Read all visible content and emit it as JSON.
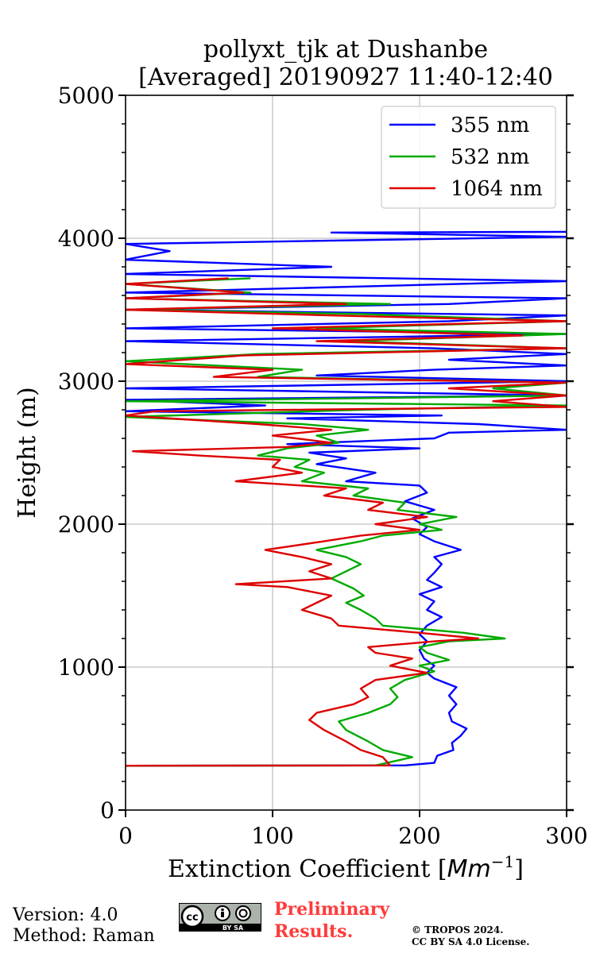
{
  "chart_data": {
    "type": "line",
    "title_line1": "pollyxt_tjk at Dushanbe",
    "title_line2": "[Averaged] 20190927 11:40-12:40",
    "xlabel_text": "Extinction Coefficient [",
    "xlabel_unit": "Mm",
    "xlabel_exp": "−1",
    "xlabel_close": "]",
    "ylabel": "Height (m)",
    "xlim": [
      0,
      300
    ],
    "ylim": [
      0,
      5000
    ],
    "x_ticks": [
      "0",
      "100",
      "200",
      "300"
    ],
    "y_ticks": [
      "0",
      "1000",
      "2000",
      "3000",
      "4000",
      "5000"
    ],
    "grid": true,
    "legend_position": "top-right",
    "series": [
      {
        "name": "355 nm",
        "color": "#0000ff",
        "points": [
          [
            0,
            310
          ],
          [
            190,
            312
          ],
          [
            210,
            330
          ],
          [
            212,
            380
          ],
          [
            223,
            420
          ],
          [
            222,
            470
          ],
          [
            228,
            520
          ],
          [
            232,
            570
          ],
          [
            222,
            620
          ],
          [
            220,
            680
          ],
          [
            225,
            740
          ],
          [
            220,
            800
          ],
          [
            225,
            860
          ],
          [
            210,
            920
          ],
          [
            205,
            960
          ],
          [
            210,
            1010
          ],
          [
            203,
            1060
          ],
          [
            200,
            1120
          ],
          [
            205,
            1180
          ],
          [
            200,
            1230
          ],
          [
            205,
            1290
          ],
          [
            215,
            1350
          ],
          [
            205,
            1400
          ],
          [
            210,
            1460
          ],
          [
            200,
            1510
          ],
          [
            215,
            1560
          ],
          [
            205,
            1610
          ],
          [
            210,
            1660
          ],
          [
            215,
            1720
          ],
          [
            210,
            1770
          ],
          [
            228,
            1820
          ],
          [
            210,
            1880
          ],
          [
            200,
            1930
          ],
          [
            205,
            1980
          ],
          [
            195,
            2040
          ],
          [
            210,
            2100
          ],
          [
            190,
            2160
          ],
          [
            205,
            2220
          ],
          [
            200,
            2270
          ],
          [
            150,
            2300
          ],
          [
            170,
            2360
          ],
          [
            130,
            2420
          ],
          [
            150,
            2460
          ],
          [
            125,
            2500
          ],
          [
            200,
            2530
          ],
          [
            110,
            2560
          ],
          [
            210,
            2600
          ],
          [
            220,
            2640
          ],
          [
            300,
            2660
          ],
          [
            240,
            2700
          ],
          [
            110,
            2740
          ],
          [
            215,
            2760
          ],
          [
            0,
            2790
          ],
          [
            95,
            2830
          ],
          [
            0,
            2870
          ],
          [
            300,
            2900
          ],
          [
            0,
            2950
          ],
          [
            300,
            3000
          ],
          [
            130,
            3040
          ],
          [
            210,
            3080
          ],
          [
            300,
            3110
          ],
          [
            220,
            3150
          ],
          [
            300,
            3190
          ],
          [
            210,
            3230
          ],
          [
            0,
            3280
          ],
          [
            300,
            3330
          ],
          [
            0,
            3370
          ],
          [
            220,
            3420
          ],
          [
            300,
            3460
          ],
          [
            0,
            3500
          ],
          [
            220,
            3540
          ],
          [
            300,
            3580
          ],
          [
            0,
            3620
          ],
          [
            300,
            3700
          ],
          [
            0,
            3750
          ],
          [
            140,
            3800
          ],
          [
            0,
            3850
          ],
          [
            30,
            3910
          ],
          [
            0,
            3960
          ],
          [
            300,
            4010
          ],
          [
            140,
            4040
          ],
          [
            300,
            4045
          ]
        ]
      },
      {
        "name": "532 nm",
        "color": "#00aa00",
        "points": [
          [
            0,
            310
          ],
          [
            170,
            312
          ],
          [
            195,
            370
          ],
          [
            175,
            420
          ],
          [
            165,
            480
          ],
          [
            150,
            560
          ],
          [
            145,
            620
          ],
          [
            165,
            680
          ],
          [
            180,
            740
          ],
          [
            185,
            790
          ],
          [
            180,
            850
          ],
          [
            190,
            910
          ],
          [
            210,
            970
          ],
          [
            200,
            1010
          ],
          [
            220,
            1050
          ],
          [
            205,
            1100
          ],
          [
            200,
            1140
          ],
          [
            220,
            1180
          ],
          [
            258,
            1200
          ],
          [
            230,
            1240
          ],
          [
            175,
            1290
          ],
          [
            170,
            1340
          ],
          [
            160,
            1400
          ],
          [
            150,
            1450
          ],
          [
            162,
            1500
          ],
          [
            155,
            1550
          ],
          [
            140,
            1620
          ],
          [
            150,
            1670
          ],
          [
            160,
            1720
          ],
          [
            150,
            1770
          ],
          [
            130,
            1820
          ],
          [
            160,
            1880
          ],
          [
            175,
            1920
          ],
          [
            215,
            1960
          ],
          [
            200,
            2000
          ],
          [
            225,
            2050
          ],
          [
            185,
            2100
          ],
          [
            190,
            2150
          ],
          [
            155,
            2200
          ],
          [
            165,
            2250
          ],
          [
            120,
            2300
          ],
          [
            135,
            2360
          ],
          [
            115,
            2400
          ],
          [
            125,
            2450
          ],
          [
            90,
            2480
          ],
          [
            110,
            2530
          ],
          [
            145,
            2570
          ],
          [
            130,
            2620
          ],
          [
            165,
            2660
          ],
          [
            120,
            2700
          ],
          [
            0,
            2750
          ],
          [
            160,
            2800
          ],
          [
            300,
            2830
          ],
          [
            0,
            2860
          ],
          [
            300,
            2900
          ],
          [
            250,
            2950
          ],
          [
            300,
            2990
          ],
          [
            90,
            3030
          ],
          [
            120,
            3080
          ],
          [
            0,
            3140
          ],
          [
            90,
            3190
          ],
          [
            300,
            3230
          ],
          [
            150,
            3280
          ],
          [
            300,
            3330
          ],
          [
            130,
            3370
          ],
          [
            300,
            3420
          ],
          [
            160,
            3470
          ],
          [
            0,
            3500
          ],
          [
            180,
            3540
          ],
          [
            0,
            3580
          ],
          [
            85,
            3620
          ],
          [
            0,
            3680
          ],
          [
            85,
            3720
          ]
        ]
      },
      {
        "name": "1064 nm",
        "color": "#dd0000",
        "points": [
          [
            0,
            310
          ],
          [
            180,
            312
          ],
          [
            175,
            370
          ],
          [
            160,
            420
          ],
          [
            150,
            480
          ],
          [
            135,
            560
          ],
          [
            125,
            630
          ],
          [
            130,
            680
          ],
          [
            155,
            740
          ],
          [
            165,
            790
          ],
          [
            160,
            850
          ],
          [
            170,
            910
          ],
          [
            205,
            960
          ],
          [
            180,
            1010
          ],
          [
            195,
            1060
          ],
          [
            170,
            1100
          ],
          [
            165,
            1140
          ],
          [
            210,
            1180
          ],
          [
            240,
            1200
          ],
          [
            200,
            1240
          ],
          [
            145,
            1290
          ],
          [
            140,
            1340
          ],
          [
            120,
            1400
          ],
          [
            130,
            1450
          ],
          [
            140,
            1500
          ],
          [
            110,
            1560
          ],
          [
            75,
            1580
          ],
          [
            140,
            1620
          ],
          [
            125,
            1670
          ],
          [
            140,
            1720
          ],
          [
            120,
            1770
          ],
          [
            95,
            1820
          ],
          [
            135,
            1880
          ],
          [
            160,
            1920
          ],
          [
            200,
            1960
          ],
          [
            170,
            2000
          ],
          [
            205,
            2050
          ],
          [
            165,
            2100
          ],
          [
            175,
            2150
          ],
          [
            135,
            2200
          ],
          [
            150,
            2250
          ],
          [
            75,
            2300
          ],
          [
            120,
            2360
          ],
          [
            100,
            2400
          ],
          [
            105,
            2450
          ],
          [
            50,
            2480
          ],
          [
            5,
            2510
          ],
          [
            110,
            2540
          ],
          [
            140,
            2570
          ],
          [
            100,
            2620
          ],
          [
            140,
            2660
          ],
          [
            90,
            2700
          ],
          [
            0,
            2760
          ],
          [
            20,
            2790
          ],
          [
            300,
            2820
          ],
          [
            250,
            2860
          ],
          [
            300,
            2900
          ],
          [
            220,
            2950
          ],
          [
            300,
            2990
          ],
          [
            60,
            3030
          ],
          [
            100,
            3080
          ],
          [
            0,
            3120
          ],
          [
            80,
            3180
          ],
          [
            300,
            3230
          ],
          [
            130,
            3280
          ],
          [
            270,
            3320
          ],
          [
            100,
            3370
          ],
          [
            300,
            3420
          ],
          [
            140,
            3460
          ],
          [
            0,
            3500
          ],
          [
            150,
            3540
          ],
          [
            0,
            3580
          ],
          [
            80,
            3620
          ],
          [
            0,
            3680
          ],
          [
            70,
            3720
          ]
        ]
      }
    ]
  },
  "footer": {
    "version": "Version: 4.0",
    "method": "Method: Raman",
    "preliminary_line1": "Preliminary",
    "preliminary_line2": "Results.",
    "copyright_line1": "© TROPOS 2024.",
    "copyright_line2": "CC BY SA 4.0 License.",
    "cc_badge_text": "BY  SA"
  }
}
